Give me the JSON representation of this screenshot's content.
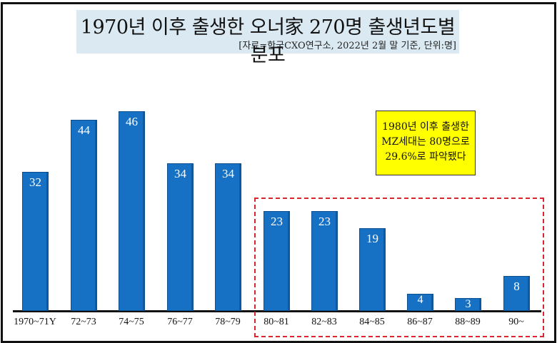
{
  "title": "1970년 이후 출생한 오너家 270명 출생년도별 분포",
  "subtitle": "[자료=한국CXO연구소,  2022년 2월 말 기준, 단위:명]",
  "callout": {
    "lines": [
      "1980년 이후 출생한",
      "MZ세대는 80명으로",
      "29.6%로 파악됐다"
    ]
  },
  "colors": {
    "bar": "#1670c4",
    "highlight_box": "#d7262e",
    "callout_bg": "#ffff00",
    "title_bg": "#dbeaf2"
  },
  "chart_data": {
    "type": "bar",
    "title": "1970년 이후 출생한 오너家 270명 출생년도별 분포",
    "subtitle": "[자료=한국CXO연구소,  2022년 2월 말 기준, 단위:명]",
    "categories": [
      "1970~71Y",
      "72~73",
      "74~75",
      "76~77",
      "78~79",
      "80~81",
      "82~83",
      "84~85",
      "86~87",
      "88~89",
      "90~"
    ],
    "values": [
      32,
      44,
      46,
      34,
      34,
      23,
      23,
      19,
      4,
      3,
      8
    ],
    "xlabel": "",
    "ylabel": "",
    "unit": "명",
    "grid": false,
    "legend": "none",
    "annotations": [
      {
        "text": "1980년 이후 출생한 MZ세대는 80명으로 29.6%로 파악됐다",
        "highlights": [
          "80~81",
          "82~83",
          "84~85",
          "86~87",
          "88~89",
          "90~"
        ]
      }
    ]
  }
}
